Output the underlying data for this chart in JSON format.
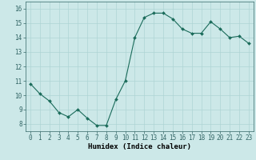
{
  "x": [
    0,
    1,
    2,
    3,
    4,
    5,
    6,
    7,
    8,
    9,
    10,
    11,
    12,
    13,
    14,
    15,
    16,
    17,
    18,
    19,
    20,
    21,
    22,
    23
  ],
  "y": [
    10.8,
    10.1,
    9.6,
    8.8,
    8.5,
    9.0,
    8.4,
    7.9,
    7.9,
    9.7,
    11.0,
    14.0,
    15.4,
    15.7,
    15.7,
    15.3,
    14.6,
    14.3,
    14.3,
    15.1,
    14.6,
    14.0,
    14.1,
    13.6
  ],
  "line_color": "#1a6b5a",
  "marker_color": "#1a6b5a",
  "bg_color": "#cce8e8",
  "grid_color": "#afd4d4",
  "xlabel": "Humidex (Indice chaleur)",
  "xlim": [
    -0.5,
    23.5
  ],
  "ylim": [
    7.5,
    16.5
  ],
  "yticks": [
    8,
    9,
    10,
    11,
    12,
    13,
    14,
    15,
    16
  ],
  "xticks": [
    0,
    1,
    2,
    3,
    4,
    5,
    6,
    7,
    8,
    9,
    10,
    11,
    12,
    13,
    14,
    15,
    16,
    17,
    18,
    19,
    20,
    21,
    22,
    23
  ],
  "tick_label_size": 5.5,
  "xlabel_size": 6.5,
  "marker_size": 2.0,
  "line_width": 0.8
}
